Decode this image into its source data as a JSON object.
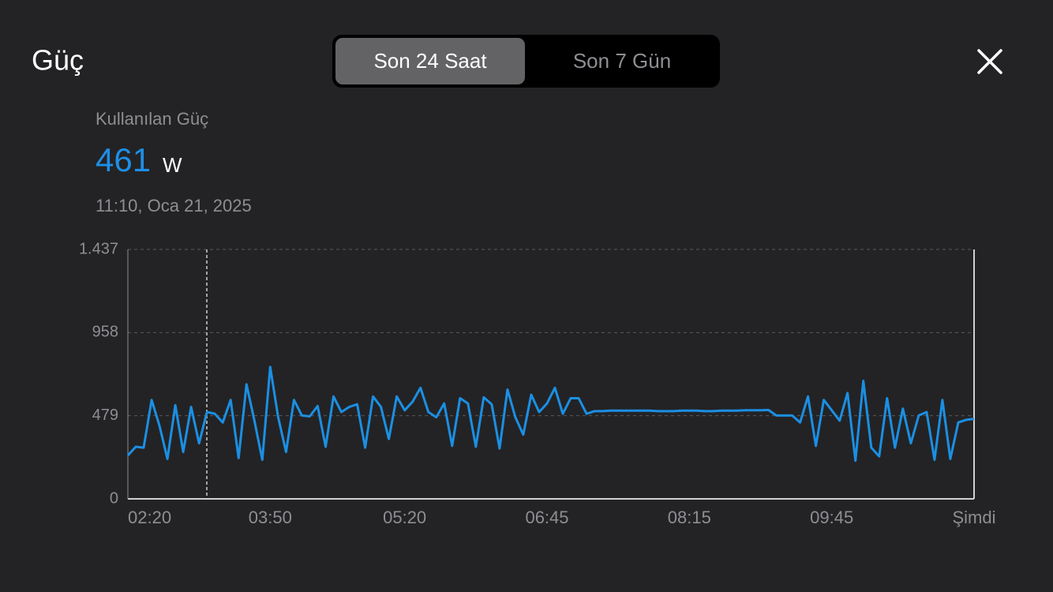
{
  "header": {
    "title": "Güç",
    "tabs": [
      "Son 24 Saat",
      "Son 7 Gün"
    ],
    "selected_tab": 0
  },
  "summary": {
    "label": "Kullanılan Güç",
    "value": 461,
    "unit": "W",
    "timestamp": "11:10, Oca 21, 2025"
  },
  "chart_data": {
    "type": "line",
    "series": [
      {
        "color": "#1b8fe3",
        "values": [
          250,
          300,
          295,
          570,
          420,
          230,
          540,
          270,
          530,
          320,
          500,
          490,
          440,
          570,
          235,
          660,
          450,
          225,
          760,
          470,
          270,
          570,
          480,
          475,
          535,
          300,
          590,
          500,
          530,
          545,
          295,
          590,
          530,
          345,
          590,
          510,
          560,
          640,
          500,
          470,
          550,
          305,
          580,
          550,
          300,
          585,
          545,
          290,
          630,
          470,
          370,
          600,
          500,
          550,
          640,
          490,
          580,
          580,
          490,
          505,
          505,
          508,
          508,
          508,
          508,
          508,
          508,
          505,
          505,
          505,
          508,
          508,
          508,
          505,
          505,
          508,
          508,
          508,
          510,
          510,
          510,
          512,
          480,
          480,
          480,
          440,
          590,
          305,
          570,
          510,
          450,
          610,
          220,
          680,
          295,
          245,
          580,
          295,
          520,
          320,
          480,
          500,
          225,
          570,
          230,
          440,
          455,
          461
        ]
      }
    ],
    "xlim": [
      0,
      107
    ],
    "xticks": [
      {
        "value": 3,
        "label": "02:20"
      },
      {
        "value": 18,
        "label": "03:50"
      },
      {
        "value": 35,
        "label": "05:20"
      },
      {
        "value": 53,
        "label": "06:45"
      },
      {
        "value": 71,
        "label": "08:15"
      },
      {
        "value": 89,
        "label": "09:45"
      },
      {
        "value": 107,
        "label": "Şimdi"
      }
    ],
    "ylim": [
      0,
      1437
    ],
    "yticks": [
      0,
      479,
      958,
      {
        "value": 1437,
        "label": "1.437"
      }
    ],
    "grid": true
  }
}
